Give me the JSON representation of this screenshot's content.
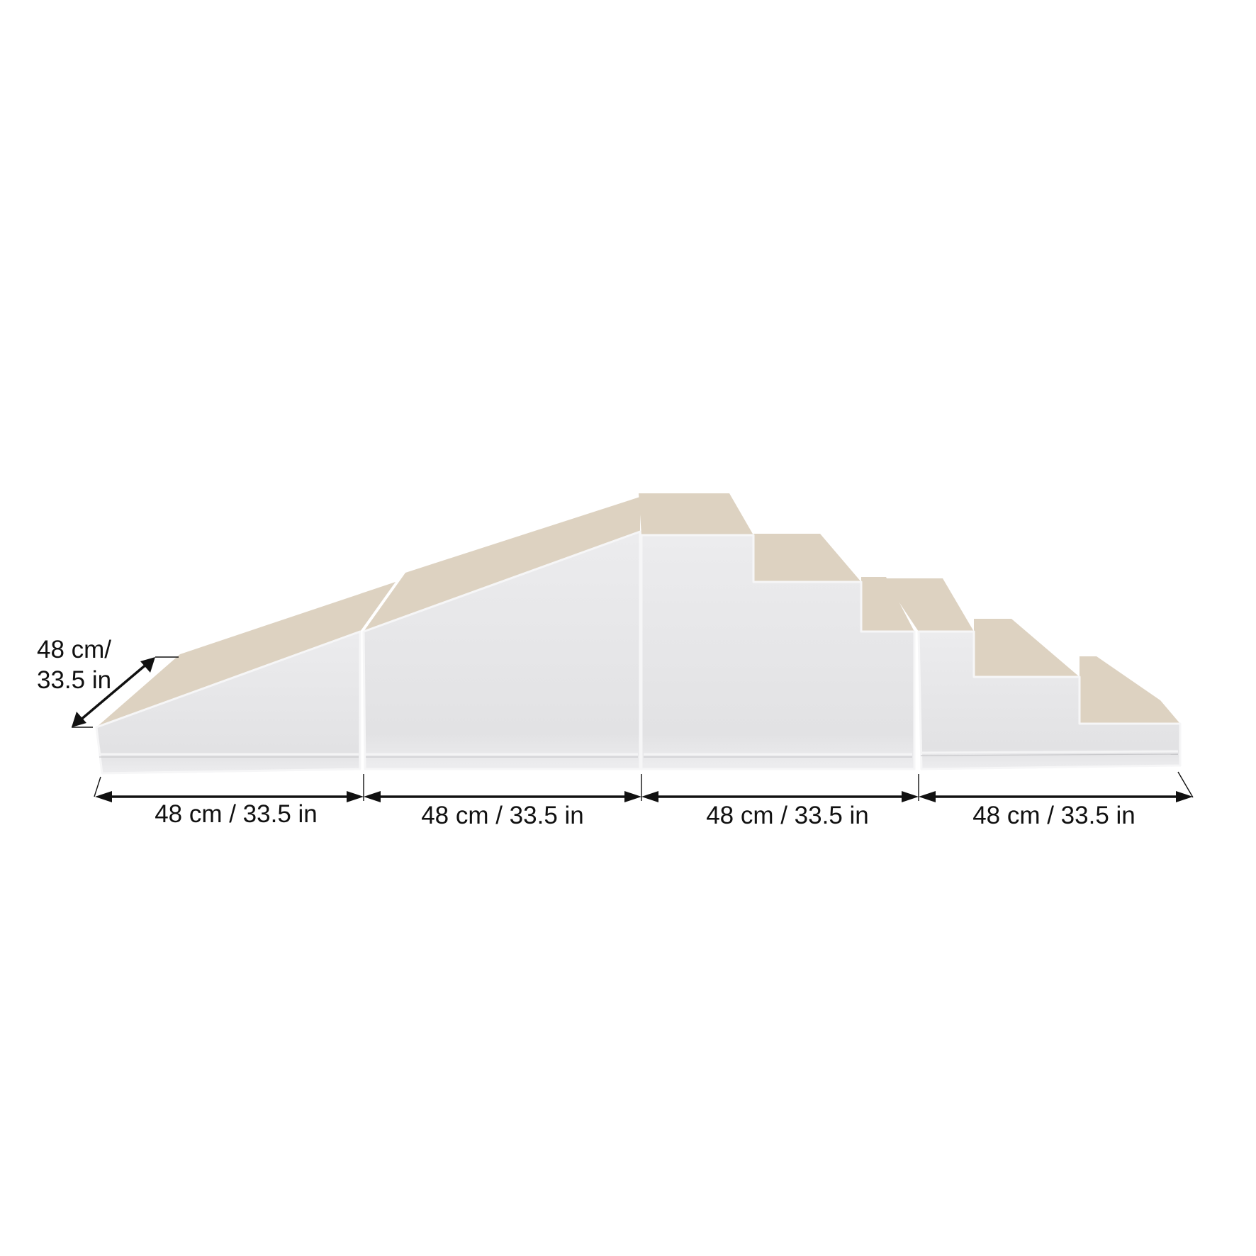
{
  "colors": {
    "top_surface": "#ddd2c1",
    "side_surface": "#e6e6e8",
    "dimension_lines": "#111111",
    "background": "#ffffff"
  },
  "dimensions": {
    "depth": {
      "line1": "48 cm/",
      "line2": "33.5 in"
    },
    "widths": [
      {
        "label": "48 cm / 33.5 in"
      },
      {
        "label": "48 cm / 33.5 in"
      },
      {
        "label": "48 cm / 33.5 in"
      },
      {
        "label": "48 cm / 33.5 in"
      }
    ]
  },
  "pieces": [
    "small-ramp",
    "large-ramp",
    "three-step-stair",
    "three-step-stair-small"
  ]
}
